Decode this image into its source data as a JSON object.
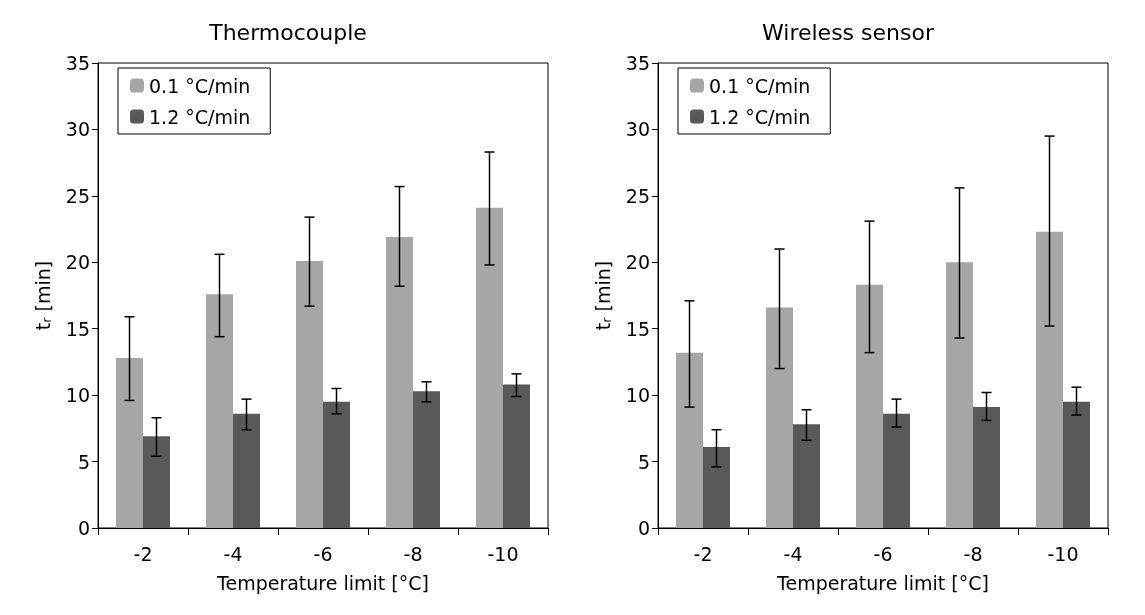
{
  "chart_data": [
    {
      "type": "bar",
      "title": "Thermocouple",
      "xlabel": "Temperature limit [°C]",
      "ylabel": "t$_{r}$ [min]",
      "categories": [
        "-2",
        "-4",
        "-6",
        "-8",
        "-10"
      ],
      "series": [
        {
          "name": "0.1 °C/min",
          "color": "#a6a6a6",
          "values": [
            12.8,
            17.6,
            20.1,
            21.9,
            24.1
          ],
          "errors": [
            [
              9.6,
              15.9
            ],
            [
              14.4,
              20.6
            ],
            [
              16.7,
              23.4
            ],
            [
              18.2,
              25.7
            ],
            [
              19.8,
              28.3
            ]
          ]
        },
        {
          "name": "1.2 °C/min",
          "color": "#595959",
          "values": [
            6.9,
            8.6,
            9.5,
            10.3,
            10.8
          ],
          "errors": [
            [
              5.4,
              8.3
            ],
            [
              7.4,
              9.7
            ],
            [
              8.6,
              10.5
            ],
            [
              9.5,
              11.0
            ],
            [
              9.9,
              11.6
            ]
          ]
        }
      ],
      "ylim": [
        0,
        35
      ],
      "yticks": [
        0,
        5,
        10,
        15,
        20,
        25,
        30,
        35
      ],
      "grid": false,
      "legend": "top left"
    },
    {
      "type": "bar",
      "title": "Wireless sensor",
      "xlabel": "Temperature limit [°C]",
      "ylabel": "t$_{r}$ [min]",
      "categories": [
        "-2",
        "-4",
        "-6",
        "-8",
        "-10"
      ],
      "series": [
        {
          "name": "0.1 °C/min",
          "color": "#a6a6a6",
          "values": [
            13.2,
            16.6,
            18.3,
            20.0,
            22.3
          ],
          "errors": [
            [
              9.1,
              17.1
            ],
            [
              12.0,
              21.0
            ],
            [
              13.2,
              23.1
            ],
            [
              14.3,
              25.6
            ],
            [
              15.2,
              29.5
            ]
          ]
        },
        {
          "name": "1.2 °C/min",
          "color": "#595959",
          "values": [
            6.1,
            7.8,
            8.6,
            9.1,
            9.5
          ],
          "errors": [
            [
              4.6,
              7.4
            ],
            [
              6.6,
              8.9
            ],
            [
              7.6,
              9.7
            ],
            [
              8.1,
              10.2
            ],
            [
              8.5,
              10.6
            ]
          ]
        }
      ],
      "ylim": [
        0,
        35
      ],
      "yticks": [
        0,
        5,
        10,
        15,
        20,
        25,
        30,
        35
      ],
      "grid": false,
      "legend": "top left"
    }
  ]
}
